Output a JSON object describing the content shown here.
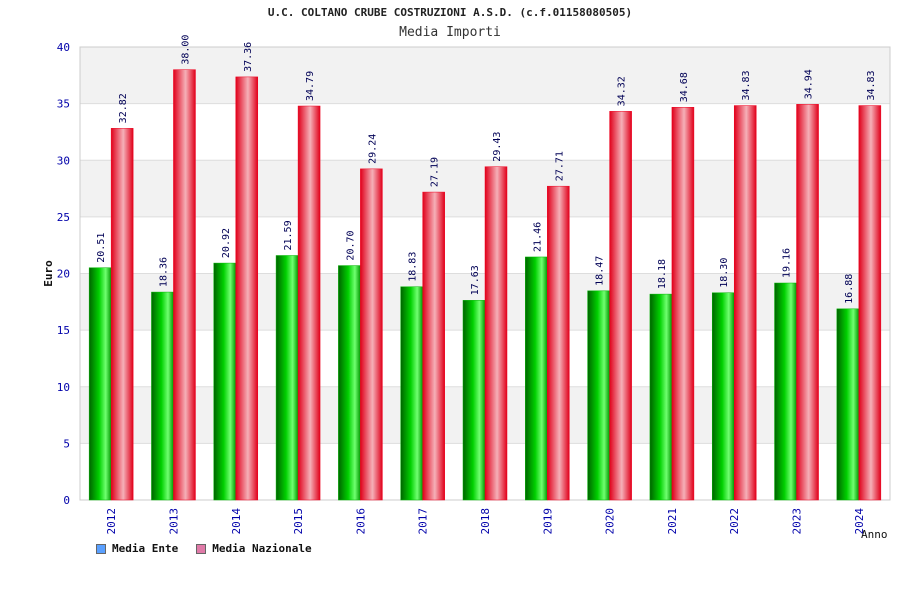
{
  "colors": {
    "ente": "#00b400",
    "nazionale": "#f0001e",
    "legend_ente": "#5aa0ff",
    "legend_nazionale": "#e07aa8",
    "axis_text": "#0000aa",
    "value_text": "#000055",
    "band": "#f2f2f2"
  },
  "chart_data": {
    "type": "bar",
    "title": "U.C. COLTANO CRUBE COSTRUZIONI A.S.D. (c.f.01158080505)",
    "subtitle": "Media Importi",
    "xlabel": "Anno",
    "ylabel": "Euro",
    "ylim": [
      0,
      40
    ],
    "yticks": [
      0,
      5,
      10,
      15,
      20,
      25,
      30,
      35,
      40
    ],
    "grid": true,
    "legend_position": "bottom-left",
    "categories": [
      "2012",
      "2013",
      "2014",
      "2015",
      "2016",
      "2017",
      "2018",
      "2019",
      "2020",
      "2021",
      "2022",
      "2023",
      "2024"
    ],
    "series": [
      {
        "name": "Media Ente",
        "values": [
          20.51,
          18.36,
          20.92,
          21.59,
          20.7,
          18.83,
          17.63,
          21.46,
          18.47,
          18.18,
          18.3,
          19.16,
          16.88
        ],
        "labels": [
          "20.51",
          "18.36",
          "20.92",
          "21.59",
          "20.70",
          "18.83",
          "17.63",
          "21.46",
          "18.47",
          "18.18",
          "18.30",
          "19.16",
          "16.88"
        ]
      },
      {
        "name": "Media Nazionale",
        "values": [
          32.82,
          38.0,
          37.36,
          34.79,
          29.24,
          27.19,
          29.43,
          27.71,
          34.32,
          34.68,
          34.83,
          34.94,
          34.83
        ],
        "labels": [
          "32.82",
          "38.00",
          "37.36",
          "34.79",
          "29.24",
          "27.19",
          "29.43",
          "27.71",
          "34.32",
          "34.68",
          "34.83",
          "34.94",
          "34.83"
        ]
      }
    ]
  }
}
